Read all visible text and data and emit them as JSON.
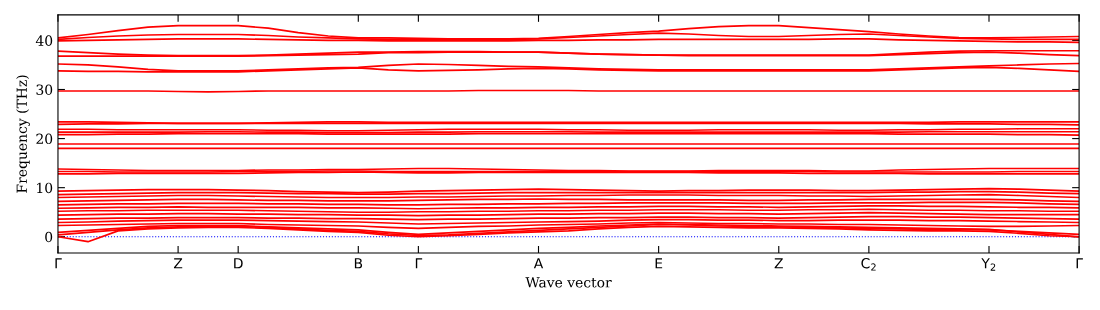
{
  "chart_data": {
    "type": "line",
    "xlabel": "Wave vector",
    "ylabel": "Frequency (THz)",
    "categories": [
      "Γ",
      null,
      null,
      null,
      "Z",
      null,
      "D",
      null,
      null,
      null,
      "B",
      null,
      "Γ",
      null,
      null,
      null,
      "A",
      null,
      null,
      null,
      "E",
      null,
      null,
      null,
      "Z",
      null,
      null,
      "C$_{2}$",
      null,
      null,
      null,
      "Y$_{2}$",
      null,
      null,
      "Γ"
    ],
    "ylim": [
      -3.3,
      45.2
    ],
    "yticks": [
      0,
      10,
      20,
      30,
      40
    ],
    "grid": false,
    "legend": false,
    "marker": "none",
    "line_style": "solid",
    "ref_lines": [
      {
        "axis": "y",
        "value": 0,
        "color": "#0000ff",
        "line_style": "dotted"
      }
    ],
    "series": [
      {
        "color": "#ff0000",
        "values": [
          40.5,
          41.2,
          42.0,
          42.7,
          43.0,
          43.0,
          43.0,
          42.5,
          41.6,
          40.9,
          40.5,
          40.5,
          40.4,
          40.3,
          40.3,
          40.3,
          40.4,
          40.8,
          41.2,
          41.6,
          41.9,
          42.4,
          42.8,
          43.0,
          43.0,
          42.6,
          42.2,
          41.8,
          41.3,
          40.9,
          40.6,
          40.5,
          40.6,
          40.7,
          40.8
        ]
      },
      {
        "color": "#ff0000",
        "values": [
          40.2,
          40.6,
          40.9,
          41.1,
          41.2,
          41.2,
          41.2,
          41.0,
          40.7,
          40.5,
          40.3,
          40.2,
          40.2,
          40.2,
          40.2,
          40.2,
          40.3,
          40.6,
          40.9,
          41.2,
          41.5,
          41.3,
          41.0,
          40.8,
          40.8,
          41.0,
          41.2,
          41.3,
          41.0,
          40.7,
          40.4,
          40.3,
          40.2,
          40.2,
          40.2
        ]
      },
      {
        "color": "#ff0000",
        "values": [
          39.9,
          40.0,
          40.1,
          40.2,
          40.3,
          40.3,
          40.3,
          40.2,
          40.1,
          40.0,
          40.0,
          39.9,
          39.9,
          39.9,
          39.9,
          39.9,
          40.0,
          40.0,
          40.1,
          40.1,
          40.2,
          40.2,
          40.2,
          40.2,
          40.2,
          40.2,
          40.3,
          40.3,
          40.1,
          40.0,
          39.9,
          39.8,
          39.7,
          39.7,
          39.6
        ]
      },
      {
        "color": "#ff0000",
        "values": [
          37.8,
          37.5,
          37.2,
          37.0,
          36.9,
          36.9,
          36.9,
          37.0,
          37.2,
          37.4,
          37.6,
          37.6,
          37.7,
          37.7,
          37.7,
          37.6,
          37.6,
          37.4,
          37.2,
          37.1,
          37.0,
          37.0,
          37.0,
          37.0,
          37.0,
          37.0,
          37.0,
          37.0,
          37.3,
          37.6,
          37.8,
          37.9,
          37.9,
          37.9,
          37.9
        ]
      },
      {
        "color": "#ff0000",
        "values": [
          36.8,
          36.8,
          36.8,
          36.8,
          36.8,
          36.8,
          36.8,
          36.9,
          37.0,
          37.1,
          37.2,
          37.5,
          37.5,
          37.6,
          37.6,
          37.6,
          37.6,
          37.4,
          37.2,
          37.1,
          37.0,
          36.9,
          36.9,
          36.9,
          36.9,
          36.9,
          36.9,
          36.9,
          37.1,
          37.3,
          37.5,
          37.6,
          37.4,
          37.1,
          36.9
        ]
      },
      {
        "color": "#ff0000",
        "values": [
          35.2,
          35.0,
          34.6,
          34.1,
          33.8,
          33.8,
          33.8,
          34.0,
          34.2,
          34.4,
          34.5,
          34.9,
          35.2,
          35.1,
          34.9,
          34.7,
          34.6,
          34.4,
          34.2,
          34.1,
          34.0,
          34.0,
          34.0,
          34.0,
          34.0,
          34.0,
          34.0,
          34.0,
          34.2,
          34.4,
          34.6,
          34.8,
          35.0,
          35.2,
          35.3
        ]
      },
      {
        "color": "#ff0000",
        "values": [
          33.8,
          33.7,
          33.7,
          33.6,
          33.6,
          33.6,
          33.6,
          33.8,
          34.0,
          34.2,
          34.4,
          34.0,
          33.8,
          33.9,
          34.0,
          34.2,
          34.3,
          34.2,
          34.0,
          33.9,
          33.8,
          33.8,
          33.8,
          33.8,
          33.8,
          33.8,
          33.8,
          33.8,
          34.0,
          34.2,
          34.4,
          34.5,
          34.3,
          34.0,
          33.7
        ]
      },
      {
        "color": "#ff0000",
        "values": [
          29.7,
          29.7,
          29.7,
          29.7,
          29.6,
          29.5,
          29.6,
          29.7,
          29.7,
          29.7,
          29.7,
          29.7,
          29.7,
          29.7,
          29.8,
          29.8,
          29.8,
          29.8,
          29.7,
          29.7,
          29.7,
          29.7,
          29.7,
          29.7,
          29.7,
          29.7,
          29.7,
          29.7,
          29.7,
          29.7,
          29.7,
          29.7,
          29.7,
          29.7,
          29.7
        ]
      },
      {
        "color": "#ff0000",
        "values": [
          23.4,
          23.4,
          23.3,
          23.2,
          23.1,
          23.1,
          23.1,
          23.2,
          23.3,
          23.4,
          23.4,
          23.3,
          23.3,
          23.3,
          23.3,
          23.3,
          23.3,
          23.3,
          23.3,
          23.3,
          23.3,
          23.3,
          23.3,
          23.3,
          23.3,
          23.3,
          23.3,
          23.3,
          23.3,
          23.3,
          23.4,
          23.4,
          23.4,
          23.4,
          23.4
        ]
      },
      {
        "color": "#ff0000",
        "values": [
          22.9,
          23.0,
          23.0,
          23.1,
          23.1,
          23.1,
          23.1,
          23.1,
          23.1,
          23.1,
          23.1,
          23.1,
          23.1,
          23.1,
          23.1,
          23.1,
          23.1,
          23.1,
          23.1,
          23.1,
          23.1,
          23.1,
          23.1,
          23.1,
          23.1,
          23.1,
          23.1,
          23.1,
          23.1,
          23.0,
          23.0,
          23.0,
          22.9,
          22.9,
          22.8
        ]
      },
      {
        "color": "#ff0000",
        "values": [
          21.9,
          21.9,
          21.8,
          21.8,
          21.8,
          21.8,
          21.8,
          21.7,
          21.7,
          21.6,
          21.6,
          21.7,
          21.8,
          21.9,
          21.9,
          21.9,
          21.9,
          21.8,
          21.8,
          21.7,
          21.7,
          21.7,
          21.8,
          21.8,
          21.8,
          21.8,
          21.7,
          21.7,
          21.8,
          21.8,
          21.9,
          21.9,
          22.0,
          22.0,
          22.0
        ]
      },
      {
        "color": "#ff0000",
        "values": [
          21.3,
          21.3,
          21.3,
          21.3,
          21.3,
          21.4,
          21.4,
          21.3,
          21.3,
          21.2,
          21.2,
          21.2,
          21.3,
          21.3,
          21.4,
          21.4,
          21.4,
          21.4,
          21.3,
          21.3,
          21.3,
          21.3,
          21.3,
          21.3,
          21.3,
          21.3,
          21.3,
          21.3,
          21.3,
          21.4,
          21.4,
          21.4,
          21.4,
          21.4,
          21.4
        ]
      },
      {
        "color": "#ff0000",
        "values": [
          20.8,
          20.8,
          20.9,
          20.9,
          21.0,
          21.0,
          21.0,
          21.0,
          21.0,
          20.9,
          20.9,
          20.9,
          20.9,
          20.9,
          21.0,
          21.0,
          21.0,
          21.0,
          21.0,
          21.0,
          21.0,
          21.0,
          21.0,
          21.0,
          21.0,
          21.0,
          21.0,
          21.0,
          20.9,
          20.9,
          20.9,
          20.9,
          20.8,
          20.8,
          20.7
        ]
      },
      {
        "color": "#ff0000",
        "values": [
          18.9,
          18.9,
          18.9,
          18.9,
          18.9,
          18.9,
          18.9,
          18.9,
          18.9,
          18.9,
          18.9,
          18.9,
          18.9,
          18.9,
          18.9,
          18.9,
          18.9,
          18.9,
          18.9,
          18.9,
          18.9,
          18.9,
          18.9,
          18.9,
          18.9,
          18.9,
          18.9,
          18.9,
          18.9,
          18.9,
          18.9,
          18.9,
          18.9,
          18.9,
          18.9
        ]
      },
      {
        "color": "#ff0000",
        "values": [
          18.0,
          18.0,
          18.0,
          18.0,
          18.0,
          18.0,
          18.0,
          18.0,
          18.0,
          18.0,
          18.0,
          18.0,
          18.0,
          18.0,
          18.0,
          18.0,
          18.0,
          18.0,
          18.0,
          18.0,
          18.0,
          18.0,
          18.0,
          18.0,
          18.0,
          18.0,
          18.0,
          18.0,
          18.0,
          18.0,
          18.0,
          18.0,
          18.0,
          18.0,
          18.0
        ]
      },
      {
        "color": "#ff0000",
        "values": [
          13.8,
          13.7,
          13.6,
          13.5,
          13.5,
          13.5,
          13.5,
          13.6,
          13.6,
          13.7,
          13.7,
          13.8,
          13.9,
          13.9,
          13.8,
          13.7,
          13.6,
          13.5,
          13.5,
          13.4,
          13.4,
          13.4,
          13.5,
          13.5,
          13.5,
          13.5,
          13.4,
          13.4,
          13.6,
          13.7,
          13.8,
          13.9,
          13.9,
          13.9,
          13.9
        ]
      },
      {
        "color": "#ff0000",
        "values": [
          13.3,
          13.3,
          13.2,
          13.2,
          13.2,
          13.2,
          13.3,
          13.3,
          13.3,
          13.4,
          13.4,
          13.3,
          13.3,
          13.3,
          13.3,
          13.3,
          13.3,
          13.3,
          13.3,
          13.3,
          13.3,
          13.3,
          13.3,
          13.3,
          13.3,
          13.3,
          13.2,
          13.2,
          13.2,
          13.2,
          13.2,
          13.2,
          13.3,
          13.3,
          13.3
        ]
      },
      {
        "color": "#ff0000",
        "values": [
          12.8,
          12.8,
          12.9,
          12.9,
          12.9,
          12.9,
          12.9,
          13.0,
          13.1,
          13.1,
          13.2,
          13.1,
          13.0,
          13.0,
          13.1,
          13.1,
          13.1,
          13.1,
          13.1,
          13.1,
          13.1,
          13.1,
          13.0,
          13.0,
          13.0,
          12.9,
          12.9,
          12.9,
          12.9,
          12.8,
          12.8,
          12.8,
          12.8,
          12.8,
          12.8
        ]
      },
      {
        "color": "#ff0000",
        "values": [
          9.3,
          9.4,
          9.5,
          9.6,
          9.6,
          9.6,
          9.5,
          9.4,
          9.2,
          9.1,
          9.0,
          9.1,
          9.3,
          9.4,
          9.5,
          9.6,
          9.7,
          9.6,
          9.5,
          9.4,
          9.3,
          9.4,
          9.4,
          9.5,
          9.5,
          9.5,
          9.4,
          9.4,
          9.5,
          9.6,
          9.7,
          9.8,
          9.7,
          9.5,
          9.3
        ]
      },
      {
        "color": "#ff0000",
        "values": [
          8.6,
          8.7,
          8.8,
          8.9,
          9.0,
          9.0,
          9.0,
          8.9,
          8.8,
          8.8,
          8.7,
          8.7,
          8.8,
          8.8,
          8.9,
          9.0,
          9.0,
          9.0,
          9.0,
          9.0,
          9.0,
          9.0,
          9.0,
          9.0,
          9.0,
          9.0,
          9.0,
          9.0,
          9.1,
          9.1,
          9.2,
          9.2,
          9.1,
          8.9,
          8.8
        ]
      },
      {
        "color": "#ff0000",
        "values": [
          8.0,
          8.1,
          8.2,
          8.3,
          8.4,
          8.4,
          8.3,
          8.2,
          8.1,
          8.0,
          8.0,
          8.0,
          8.1,
          8.1,
          8.2,
          8.3,
          8.3,
          8.4,
          8.4,
          8.5,
          8.5,
          8.5,
          8.4,
          8.4,
          8.4,
          8.3,
          8.3,
          8.2,
          8.3,
          8.4,
          8.5,
          8.6,
          8.4,
          8.2,
          8.0
        ]
      },
      {
        "color": "#ff0000",
        "values": [
          7.2,
          7.3,
          7.4,
          7.5,
          7.6,
          7.6,
          7.5,
          7.4,
          7.4,
          7.3,
          7.3,
          7.3,
          7.4,
          7.5,
          7.6,
          7.6,
          7.7,
          7.6,
          7.6,
          7.5,
          7.5,
          7.5,
          7.5,
          7.4,
          7.4,
          7.5,
          7.5,
          7.6,
          7.6,
          7.6,
          7.6,
          7.6,
          7.5,
          7.3,
          7.2
        ]
      },
      {
        "color": "#ff0000",
        "values": [
          6.5,
          6.6,
          6.7,
          6.7,
          6.8,
          6.8,
          6.8,
          6.7,
          6.7,
          6.6,
          6.6,
          6.5,
          6.5,
          6.6,
          6.6,
          6.7,
          6.7,
          6.8,
          6.8,
          6.9,
          6.9,
          6.9,
          6.9,
          6.8,
          6.8,
          6.8,
          6.9,
          6.9,
          6.9,
          7.0,
          7.0,
          7.0,
          6.9,
          6.7,
          6.6
        ]
      },
      {
        "color": "#ff0000",
        "values": [
          5.8,
          5.9,
          6.0,
          6.0,
          6.1,
          6.0,
          6.0,
          6.0,
          6.0,
          5.9,
          5.9,
          5.8,
          5.7,
          5.8,
          5.9,
          5.9,
          6.0,
          6.0,
          6.1,
          6.1,
          6.2,
          6.2,
          6.1,
          6.1,
          6.0,
          6.1,
          6.2,
          6.3,
          6.3,
          6.2,
          6.2,
          6.1,
          6.0,
          6.0,
          5.9
        ]
      },
      {
        "color": "#ff0000",
        "values": [
          5.2,
          5.3,
          5.3,
          5.4,
          5.4,
          5.4,
          5.4,
          5.3,
          5.2,
          5.1,
          5.0,
          5.0,
          5.1,
          5.1,
          5.2,
          5.2,
          5.3,
          5.3,
          5.4,
          5.4,
          5.5,
          5.5,
          5.5,
          5.4,
          5.4,
          5.5,
          5.5,
          5.6,
          5.5,
          5.4,
          5.4,
          5.3,
          5.3,
          5.2,
          5.2
        ]
      },
      {
        "color": "#ff0000",
        "values": [
          4.4,
          4.5,
          4.6,
          4.6,
          4.7,
          4.7,
          4.6,
          4.6,
          4.5,
          4.5,
          4.4,
          4.4,
          4.3,
          4.4,
          4.4,
          4.5,
          4.6,
          4.6,
          4.7,
          4.7,
          4.8,
          4.8,
          4.7,
          4.7,
          4.6,
          4.7,
          4.8,
          4.9,
          4.8,
          4.7,
          4.6,
          4.5,
          4.5,
          4.5,
          4.5
        ]
      },
      {
        "color": "#ff0000",
        "values": [
          3.6,
          3.7,
          3.8,
          3.8,
          3.9,
          3.9,
          3.9,
          3.8,
          3.8,
          3.7,
          3.7,
          3.6,
          3.5,
          3.6,
          3.6,
          3.7,
          3.8,
          3.8,
          3.9,
          3.9,
          4.0,
          4.0,
          3.9,
          3.9,
          3.8,
          3.9,
          4.0,
          4.1,
          4.1,
          4.0,
          4.0,
          3.9,
          3.8,
          3.7,
          3.6
        ]
      },
      {
        "color": "#ff0000",
        "values": [
          2.9,
          3.0,
          3.2,
          3.3,
          3.4,
          3.4,
          3.4,
          3.3,
          3.2,
          3.1,
          3.0,
          2.8,
          2.6,
          2.7,
          2.8,
          2.9,
          3.0,
          3.1,
          3.2,
          3.4,
          3.5,
          3.5,
          3.4,
          3.4,
          3.3,
          3.3,
          3.4,
          3.4,
          3.4,
          3.3,
          3.3,
          3.2,
          3.1,
          3.0,
          2.9
        ]
      },
      {
        "color": "#ff0000",
        "values": [
          2.3,
          2.4,
          2.5,
          2.6,
          2.7,
          2.7,
          2.7,
          2.5,
          2.4,
          2.3,
          2.2,
          1.9,
          1.7,
          1.9,
          2.1,
          2.2,
          2.4,
          2.5,
          2.6,
          2.8,
          2.9,
          2.8,
          2.7,
          2.7,
          2.6,
          2.6,
          2.5,
          2.5,
          2.4,
          2.3,
          2.2,
          2.1,
          2.1,
          2.2,
          2.3
        ]
      },
      {
        "color": "#ff0000",
        "values": [
          0.9,
          1.3,
          1.7,
          2.1,
          2.3,
          2.3,
          2.3,
          2.0,
          1.8,
          1.6,
          1.4,
          0.9,
          0.5,
          0.8,
          1.1,
          1.4,
          1.7,
          1.9,
          2.2,
          2.4,
          2.6,
          2.5,
          2.4,
          2.3,
          2.2,
          2.1,
          2.0,
          1.9,
          1.8,
          1.7,
          1.6,
          1.5,
          1.0,
          0.5,
          0.0
        ]
      },
      {
        "color": "#ff0000",
        "values": [
          0.4,
          0.9,
          1.4,
          1.8,
          2.0,
          2.1,
          2.1,
          1.9,
          1.6,
          1.3,
          1.1,
          0.6,
          0.25,
          0.4,
          0.7,
          1.0,
          1.3,
          1.6,
          1.9,
          2.2,
          2.5,
          2.4,
          2.2,
          2.1,
          2.0,
          1.9,
          1.8,
          1.7,
          1.6,
          1.5,
          1.5,
          1.4,
          1.1,
          0.8,
          0.5
        ]
      },
      {
        "color": "#ff0000",
        "values": [
          0.0,
          -1.0,
          1.2,
          1.6,
          1.8,
          1.9,
          1.9,
          1.7,
          1.4,
          1.1,
          0.9,
          0.3,
          0.0,
          0.2,
          0.5,
          0.8,
          1.0,
          1.2,
          1.6,
          1.9,
          2.1,
          2.0,
          1.9,
          1.8,
          1.8,
          1.7,
          1.6,
          1.4,
          1.3,
          1.2,
          1.2,
          1.1,
          0.7,
          0.2,
          0.0
        ]
      }
    ]
  }
}
